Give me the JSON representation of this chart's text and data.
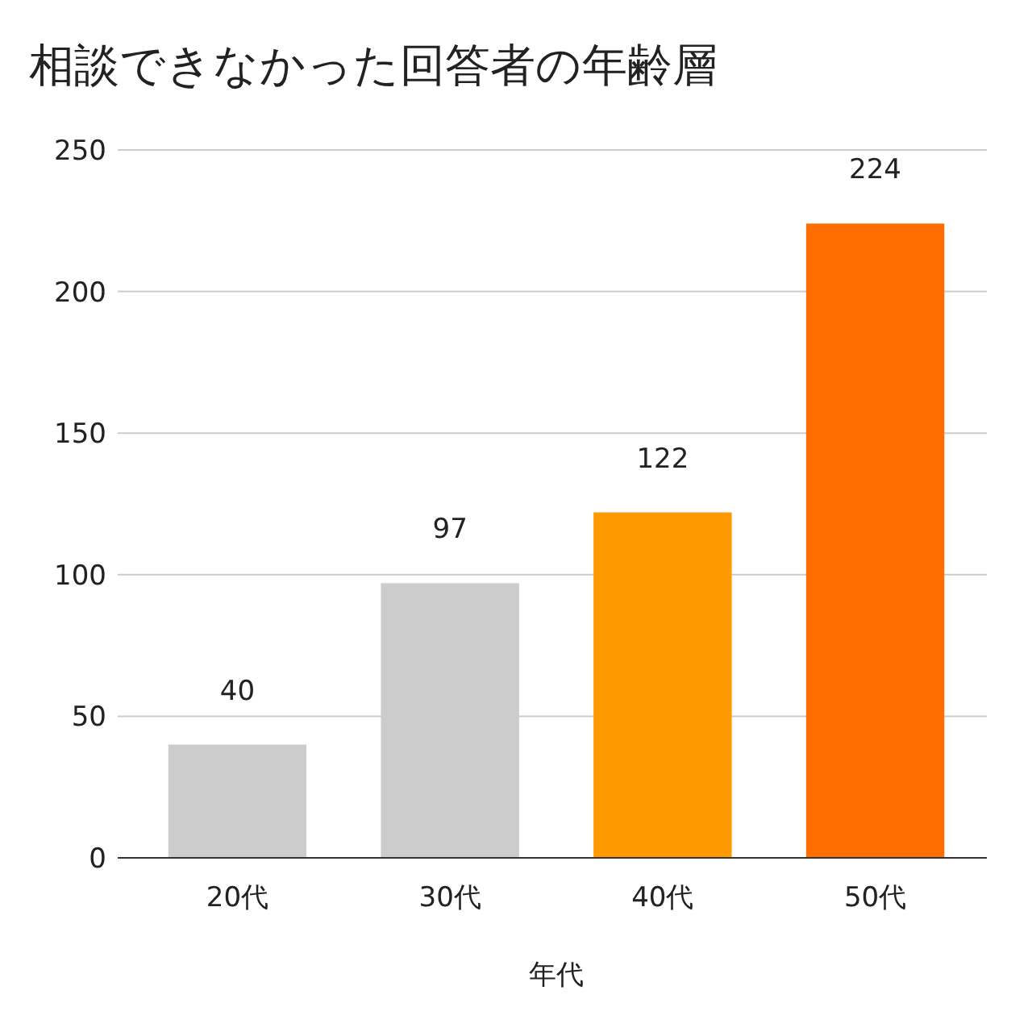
{
  "chart_data": {
    "type": "bar",
    "title": "相談できなかった回答者の年齢層",
    "xlabel": "年代",
    "categories": [
      "20代",
      "30代",
      "40代",
      "50代"
    ],
    "values": [
      40,
      97,
      122,
      224
    ],
    "colors": [
      "#cccccc",
      "#cccccc",
      "#ff9900",
      "#ff6d01"
    ],
    "ylim": [
      0,
      250
    ],
    "yticks": [
      0,
      50,
      100,
      150,
      200,
      250
    ],
    "grid": "y",
    "data_labels": true
  }
}
